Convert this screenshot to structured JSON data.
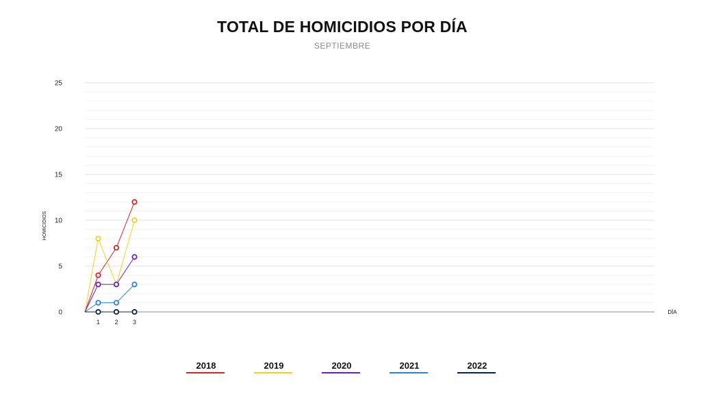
{
  "colors": {
    "2018": "#d6232a",
    "2019": "#f2d01f",
    "2020": "#6a1fb5",
    "2021": "#2f7fd9",
    "2022": "#0b1f4d",
    "grid": "#e8e8e8",
    "axis": "#888888"
  },
  "chart_data": {
    "type": "line",
    "title": "TOTAL DE HOMICIDIOS POR DÍA",
    "subtitle": "SEPTIEMBRE",
    "xlabel": "DÍA",
    "ylabel": "HOMICIDIOS",
    "x": [
      1,
      2,
      3
    ],
    "ylim": [
      0,
      25
    ],
    "yticks": [
      0,
      5,
      10,
      15,
      20,
      25
    ],
    "grid": true,
    "legend_position": "bottom",
    "series": [
      {
        "name": "2018",
        "values": [
          4,
          7,
          12
        ]
      },
      {
        "name": "2019",
        "values": [
          8,
          3,
          10
        ]
      },
      {
        "name": "2020",
        "values": [
          3,
          3,
          6
        ]
      },
      {
        "name": "2021",
        "values": [
          1,
          1,
          3
        ]
      },
      {
        "name": "2022",
        "values": [
          0,
          0,
          0
        ]
      }
    ]
  }
}
